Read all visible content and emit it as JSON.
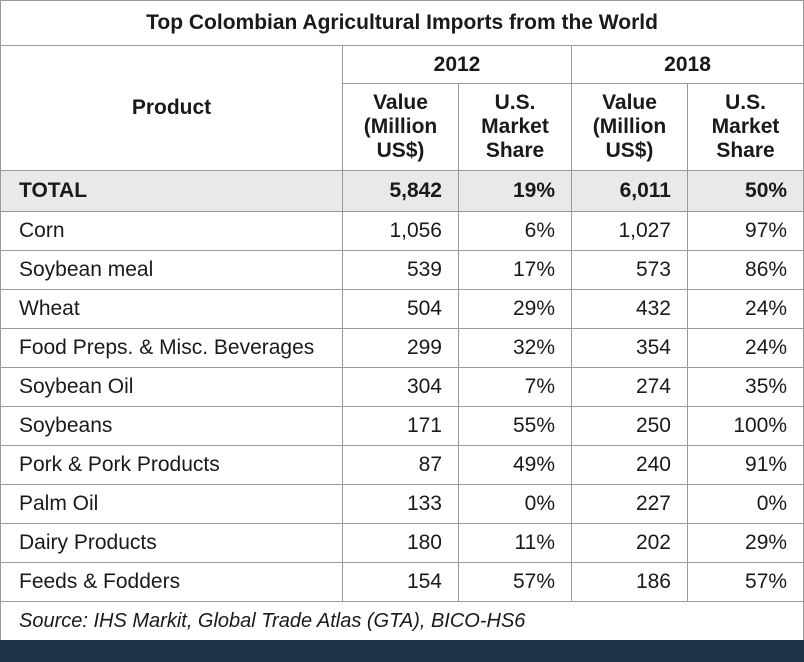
{
  "title": "Top Colombian Agricultural Imports from the World",
  "header": {
    "product": "Product",
    "year_a": "2012",
    "year_b": "2018",
    "value_label": [
      "Value",
      "(Million",
      "US$)"
    ],
    "share_label": [
      "U.S.",
      "Market",
      "Share"
    ]
  },
  "total": {
    "product": "TOTAL",
    "v2012": "5,842",
    "s2012": "19%",
    "v2018": "6,011",
    "s2018": "50%"
  },
  "rows": [
    {
      "product": "Corn",
      "v2012": "1,056",
      "s2012": "6%",
      "v2018": "1,027",
      "s2018": "97%"
    },
    {
      "product": "Soybean meal",
      "v2012": "539",
      "s2012": "17%",
      "v2018": "573",
      "s2018": "86%"
    },
    {
      "product": "Wheat",
      "v2012": "504",
      "s2012": "29%",
      "v2018": "432",
      "s2018": "24%"
    },
    {
      "product": "Food Preps. & Misc. Beverages",
      "v2012": "299",
      "s2012": "32%",
      "v2018": "354",
      "s2018": "24%"
    },
    {
      "product": "Soybean Oil",
      "v2012": "304",
      "s2012": "7%",
      "v2018": "274",
      "s2018": "35%"
    },
    {
      "product": "Soybeans",
      "v2012": "171",
      "s2012": "55%",
      "v2018": "250",
      "s2018": "100%"
    },
    {
      "product": "Pork & Pork Products",
      "v2012": "87",
      "s2012": "49%",
      "v2018": "240",
      "s2018": "91%"
    },
    {
      "product": "Palm Oil",
      "v2012": "133",
      "s2012": "0%",
      "v2018": "227",
      "s2018": "0%"
    },
    {
      "product": "Dairy Products",
      "v2012": "180",
      "s2012": "11%",
      "v2018": "202",
      "s2018": "29%"
    },
    {
      "product": "Feeds & Fodders",
      "v2012": "154",
      "s2012": "57%",
      "v2018": "186",
      "s2018": "57%"
    }
  ],
  "source": "Source: IHS Markit, Global Trade Atlas (GTA), BICO-HS6",
  "colors": {
    "footer_bar": "#1f3448",
    "total_row_bg": "#e9e9e9",
    "border": "#9a9a9a"
  }
}
